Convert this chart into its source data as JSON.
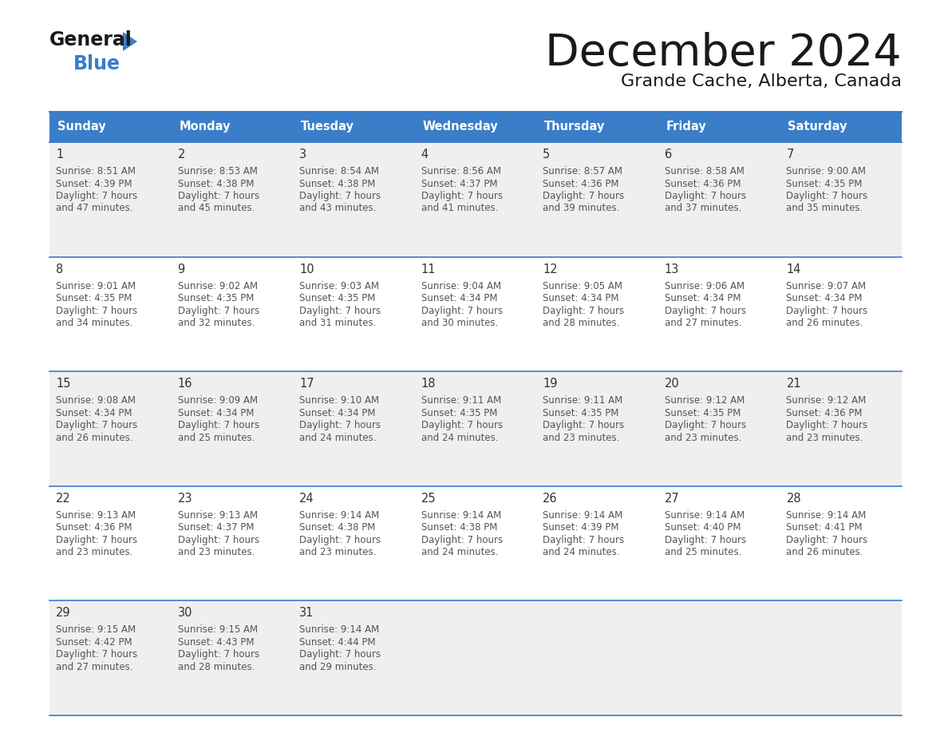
{
  "title": "December 2024",
  "subtitle": "Grande Cache, Alberta, Canada",
  "header_bg": "#3A7DC9",
  "header_text_color": "#FFFFFF",
  "days_of_week": [
    "Sunday",
    "Monday",
    "Tuesday",
    "Wednesday",
    "Thursday",
    "Friday",
    "Saturday"
  ],
  "cell_bg_row0": "#EFEFEF",
  "cell_bg_row1": "#FFFFFF",
  "cell_border_color": "#3A7DC9",
  "day_number_color": "#333333",
  "cell_text_color": "#555555",
  "calendar": [
    [
      {
        "day": "1",
        "sunrise": "8:51 AM",
        "sunset": "4:39 PM",
        "dl_hrs": "7 hours",
        "dl_min": "47 minutes."
      },
      {
        "day": "2",
        "sunrise": "8:53 AM",
        "sunset": "4:38 PM",
        "dl_hrs": "7 hours",
        "dl_min": "45 minutes."
      },
      {
        "day": "3",
        "sunrise": "8:54 AM",
        "sunset": "4:38 PM",
        "dl_hrs": "7 hours",
        "dl_min": "43 minutes."
      },
      {
        "day": "4",
        "sunrise": "8:56 AM",
        "sunset": "4:37 PM",
        "dl_hrs": "7 hours",
        "dl_min": "41 minutes."
      },
      {
        "day": "5",
        "sunrise": "8:57 AM",
        "sunset": "4:36 PM",
        "dl_hrs": "7 hours",
        "dl_min": "39 minutes."
      },
      {
        "day": "6",
        "sunrise": "8:58 AM",
        "sunset": "4:36 PM",
        "dl_hrs": "7 hours",
        "dl_min": "37 minutes."
      },
      {
        "day": "7",
        "sunrise": "9:00 AM",
        "sunset": "4:35 PM",
        "dl_hrs": "7 hours",
        "dl_min": "35 minutes."
      }
    ],
    [
      {
        "day": "8",
        "sunrise": "9:01 AM",
        "sunset": "4:35 PM",
        "dl_hrs": "7 hours",
        "dl_min": "34 minutes."
      },
      {
        "day": "9",
        "sunrise": "9:02 AM",
        "sunset": "4:35 PM",
        "dl_hrs": "7 hours",
        "dl_min": "32 minutes."
      },
      {
        "day": "10",
        "sunrise": "9:03 AM",
        "sunset": "4:35 PM",
        "dl_hrs": "7 hours",
        "dl_min": "31 minutes."
      },
      {
        "day": "11",
        "sunrise": "9:04 AM",
        "sunset": "4:34 PM",
        "dl_hrs": "7 hours",
        "dl_min": "30 minutes."
      },
      {
        "day": "12",
        "sunrise": "9:05 AM",
        "sunset": "4:34 PM",
        "dl_hrs": "7 hours",
        "dl_min": "28 minutes."
      },
      {
        "day": "13",
        "sunrise": "9:06 AM",
        "sunset": "4:34 PM",
        "dl_hrs": "7 hours",
        "dl_min": "27 minutes."
      },
      {
        "day": "14",
        "sunrise": "9:07 AM",
        "sunset": "4:34 PM",
        "dl_hrs": "7 hours",
        "dl_min": "26 minutes."
      }
    ],
    [
      {
        "day": "15",
        "sunrise": "9:08 AM",
        "sunset": "4:34 PM",
        "dl_hrs": "7 hours",
        "dl_min": "26 minutes."
      },
      {
        "day": "16",
        "sunrise": "9:09 AM",
        "sunset": "4:34 PM",
        "dl_hrs": "7 hours",
        "dl_min": "25 minutes."
      },
      {
        "day": "17",
        "sunrise": "9:10 AM",
        "sunset": "4:34 PM",
        "dl_hrs": "7 hours",
        "dl_min": "24 minutes."
      },
      {
        "day": "18",
        "sunrise": "9:11 AM",
        "sunset": "4:35 PM",
        "dl_hrs": "7 hours",
        "dl_min": "24 minutes."
      },
      {
        "day": "19",
        "sunrise": "9:11 AM",
        "sunset": "4:35 PM",
        "dl_hrs": "7 hours",
        "dl_min": "23 minutes."
      },
      {
        "day": "20",
        "sunrise": "9:12 AM",
        "sunset": "4:35 PM",
        "dl_hrs": "7 hours",
        "dl_min": "23 minutes."
      },
      {
        "day": "21",
        "sunrise": "9:12 AM",
        "sunset": "4:36 PM",
        "dl_hrs": "7 hours",
        "dl_min": "23 minutes."
      }
    ],
    [
      {
        "day": "22",
        "sunrise": "9:13 AM",
        "sunset": "4:36 PM",
        "dl_hrs": "7 hours",
        "dl_min": "23 minutes."
      },
      {
        "day": "23",
        "sunrise": "9:13 AM",
        "sunset": "4:37 PM",
        "dl_hrs": "7 hours",
        "dl_min": "23 minutes."
      },
      {
        "day": "24",
        "sunrise": "9:14 AM",
        "sunset": "4:38 PM",
        "dl_hrs": "7 hours",
        "dl_min": "23 minutes."
      },
      {
        "day": "25",
        "sunrise": "9:14 AM",
        "sunset": "4:38 PM",
        "dl_hrs": "7 hours",
        "dl_min": "24 minutes."
      },
      {
        "day": "26",
        "sunrise": "9:14 AM",
        "sunset": "4:39 PM",
        "dl_hrs": "7 hours",
        "dl_min": "24 minutes."
      },
      {
        "day": "27",
        "sunrise": "9:14 AM",
        "sunset": "4:40 PM",
        "dl_hrs": "7 hours",
        "dl_min": "25 minutes."
      },
      {
        "day": "28",
        "sunrise": "9:14 AM",
        "sunset": "4:41 PM",
        "dl_hrs": "7 hours",
        "dl_min": "26 minutes."
      }
    ],
    [
      {
        "day": "29",
        "sunrise": "9:15 AM",
        "sunset": "4:42 PM",
        "dl_hrs": "7 hours",
        "dl_min": "27 minutes."
      },
      {
        "day": "30",
        "sunrise": "9:15 AM",
        "sunset": "4:43 PM",
        "dl_hrs": "7 hours",
        "dl_min": "28 minutes."
      },
      {
        "day": "31",
        "sunrise": "9:14 AM",
        "sunset": "4:44 PM",
        "dl_hrs": "7 hours",
        "dl_min": "29 minutes."
      },
      null,
      null,
      null,
      null
    ]
  ]
}
